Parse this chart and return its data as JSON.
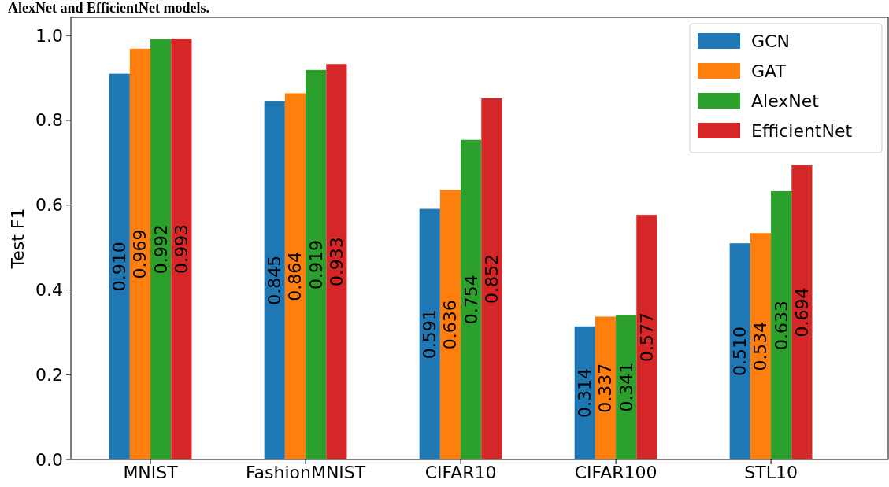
{
  "chart_data": {
    "type": "bar",
    "ylabel": "Test F1",
    "annotations": [
      "AlexNet and EfficientNet models."
    ],
    "categories": [
      "MNIST",
      "FashionMNIST",
      "CIFAR10",
      "CIFAR100",
      "STL10"
    ],
    "series": [
      {
        "name": "GCN",
        "color": "#1f77b4",
        "values": [
          0.91,
          0.845,
          0.591,
          0.314,
          0.51
        ],
        "value_labels": [
          "0.910",
          "0.845",
          "0.591",
          "0.314",
          "0.510"
        ]
      },
      {
        "name": "GAT",
        "color": "#ff7f0e",
        "values": [
          0.969,
          0.864,
          0.636,
          0.337,
          0.534
        ],
        "value_labels": [
          "0.969",
          "0.864",
          "0.636",
          "0.337",
          "0.534"
        ]
      },
      {
        "name": "AlexNet",
        "color": "#2ca02c",
        "values": [
          0.992,
          0.919,
          0.754,
          0.341,
          0.633
        ],
        "value_labels": [
          "0.992",
          "0.919",
          "0.754",
          "0.341",
          "0.633"
        ]
      },
      {
        "name": "EfficientNet",
        "color": "#d62728",
        "values": [
          0.993,
          0.933,
          0.852,
          0.577,
          0.694
        ],
        "value_labels": [
          "0.993",
          "0.933",
          "0.852",
          "0.577",
          "0.694"
        ]
      }
    ],
    "ylim": [
      0,
      1.043
    ],
    "yticks": [
      {
        "value": 0,
        "label": "0.0"
      },
      {
        "value": 0.2,
        "label": "0.2"
      },
      {
        "value": 0.4,
        "label": "0.4"
      },
      {
        "value": 0.6,
        "label": "0.6"
      },
      {
        "value": 0.8,
        "label": "0.8"
      },
      {
        "value": 1,
        "label": "1.0"
      }
    ],
    "legend": "top right",
    "grid": false
  }
}
